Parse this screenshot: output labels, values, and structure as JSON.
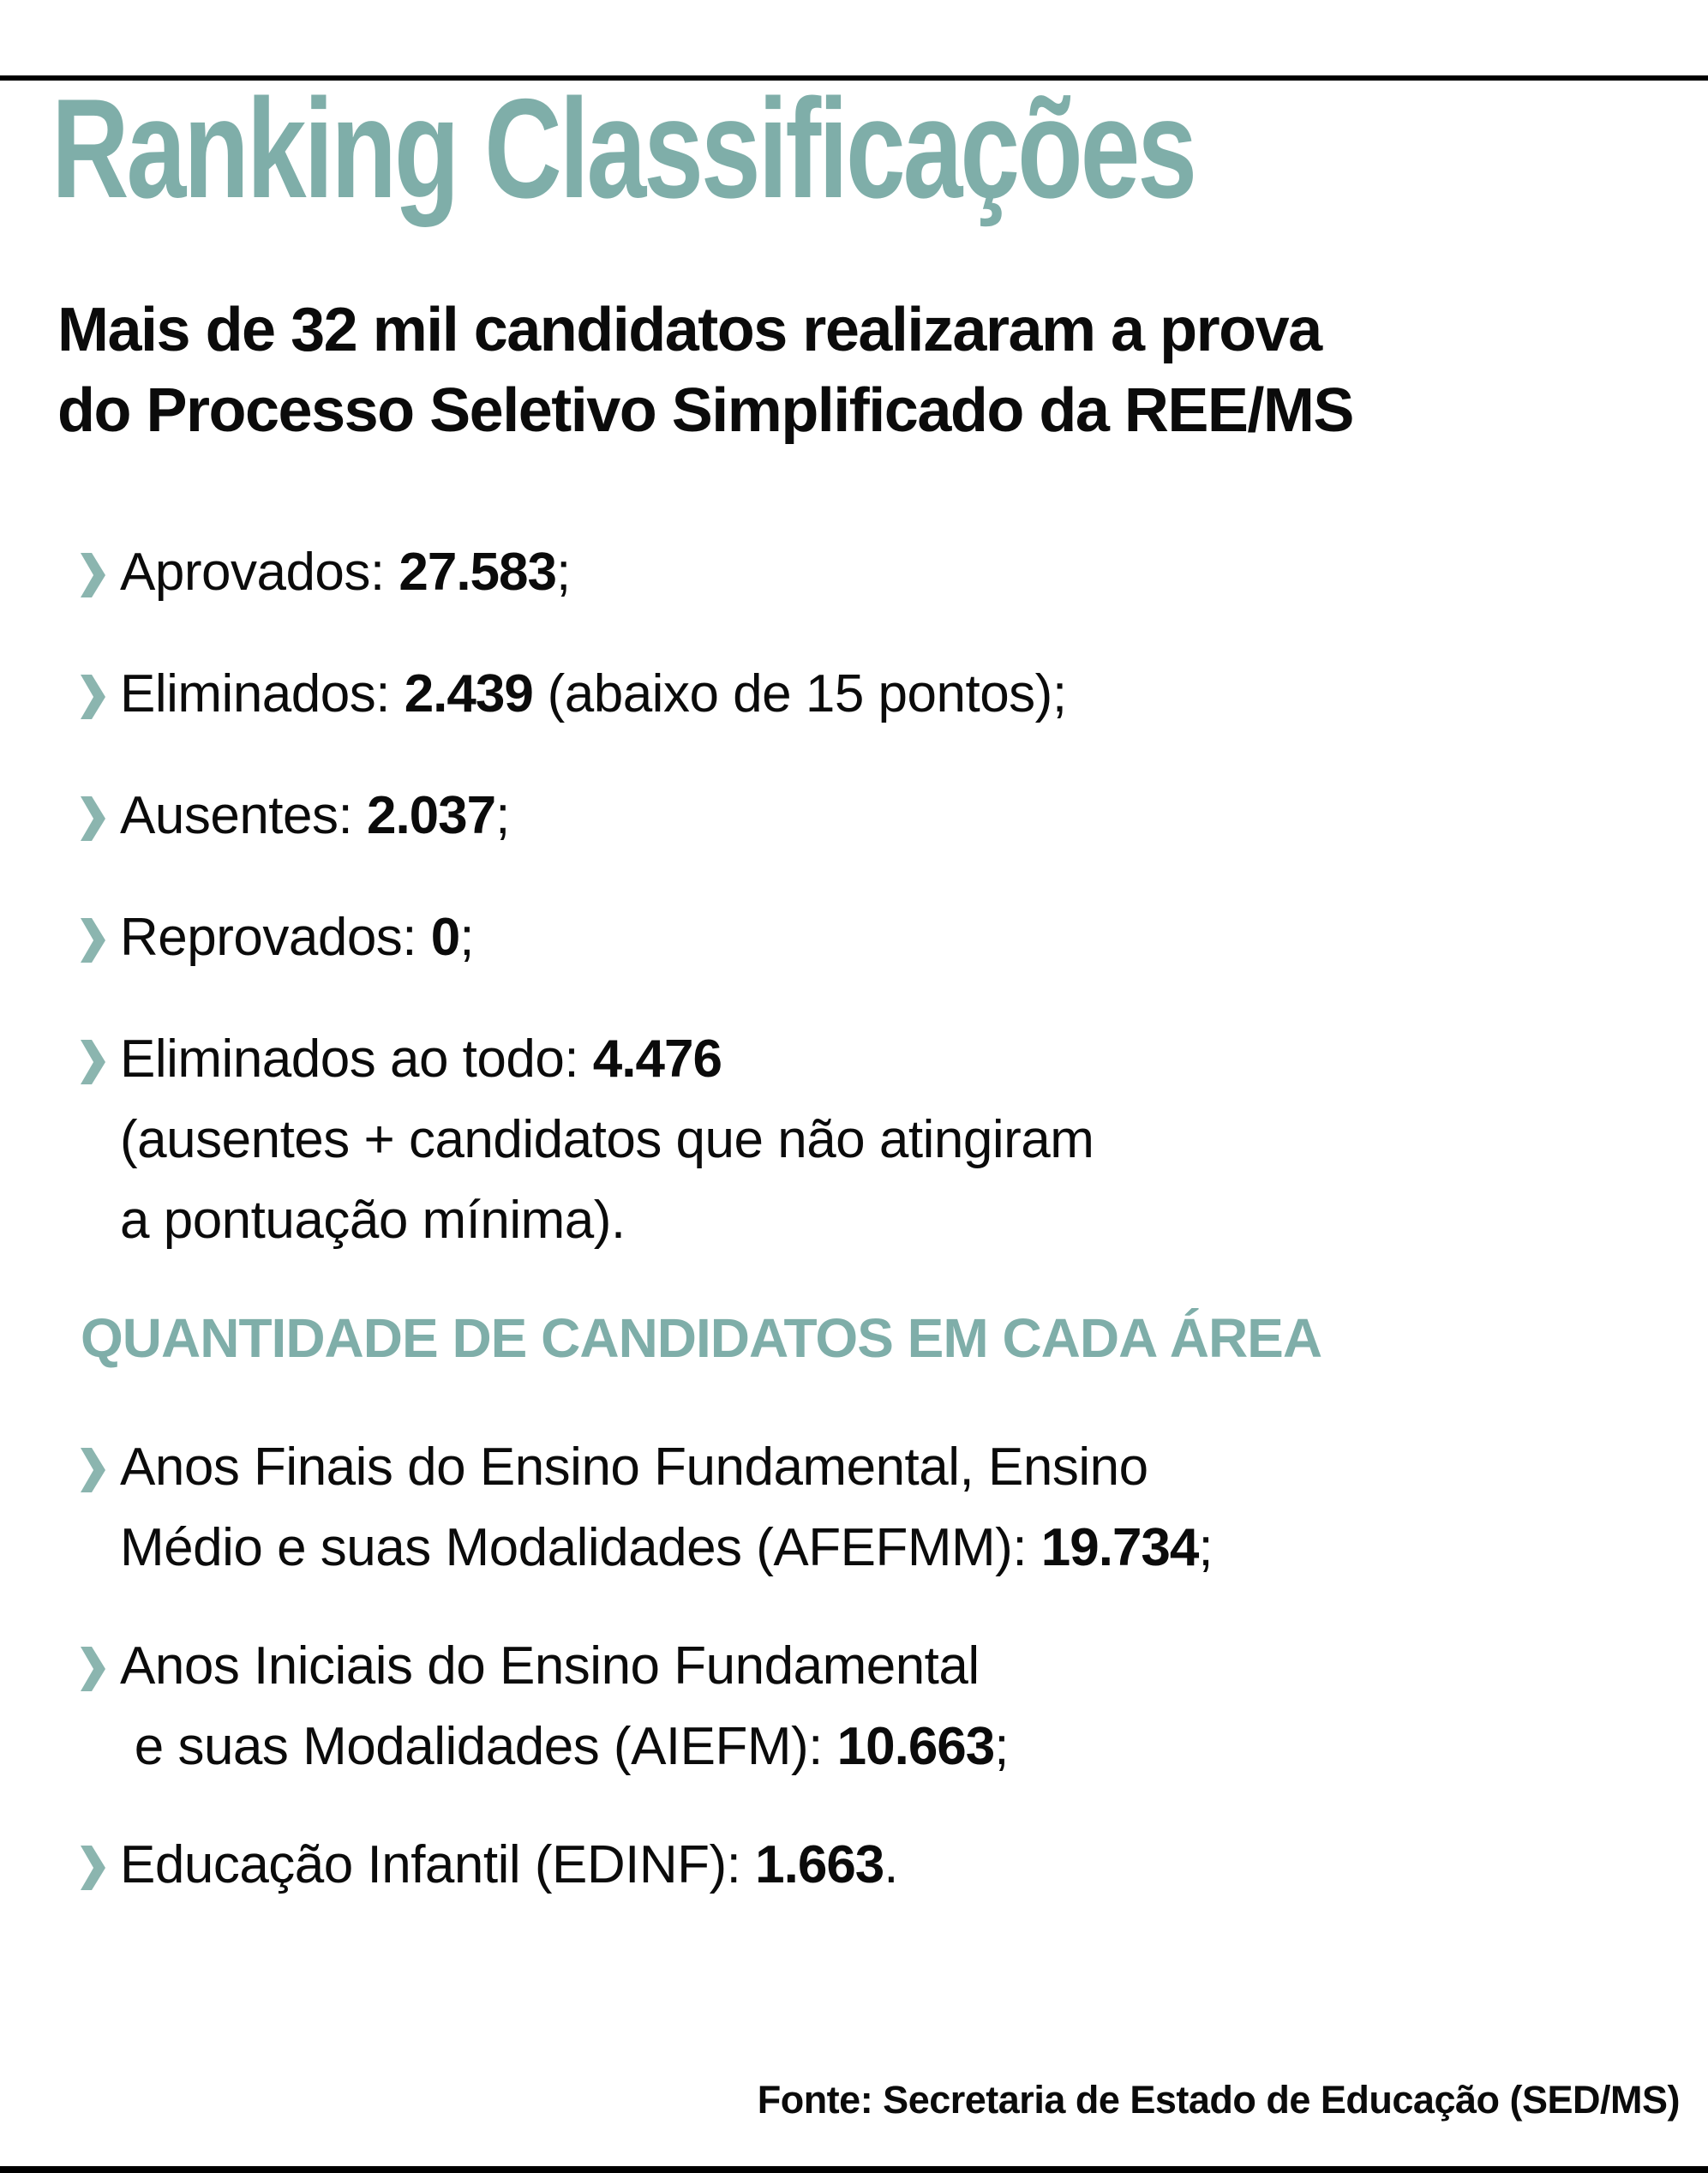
{
  "colors": {
    "accent": "#7FAEA9",
    "bullet": "#8BB5AF",
    "text": "#0B0B0B",
    "bar": "#000000",
    "background": "#FFFFFF"
  },
  "bullet_glyph": "❯",
  "header": {
    "title": "Ranking Classificações",
    "subtitle_lines": [
      "Mais de 32 mil candidatos realizaram a prova",
      "do Processo Seletivo Simplificado da REE/MS"
    ]
  },
  "summary": {
    "items": [
      {
        "lines": [
          [
            {
              "text": "Aprovados: "
            },
            {
              "text": "27.583",
              "bold": true
            },
            {
              "text": ";"
            }
          ]
        ]
      },
      {
        "lines": [
          [
            {
              "text": "Eliminados: "
            },
            {
              "text": "2.439",
              "bold": true
            },
            {
              "text": " (abaixo de 15 pontos);"
            }
          ]
        ]
      },
      {
        "lines": [
          [
            {
              "text": "Ausentes: "
            },
            {
              "text": "2.037",
              "bold": true
            },
            {
              "text": ";"
            }
          ]
        ]
      },
      {
        "lines": [
          [
            {
              "text": "Reprovados: "
            },
            {
              "text": "0",
              "bold": true
            },
            {
              "text": ";"
            }
          ]
        ]
      },
      {
        "lines": [
          [
            {
              "text": "Eliminados ao todo: "
            },
            {
              "text": "4.476",
              "bold": true
            }
          ],
          [
            {
              "text": "(ausentes + candidatos que não atingiram"
            }
          ],
          [
            {
              "text": "a pontuação mínima)."
            }
          ]
        ]
      }
    ]
  },
  "areas": {
    "heading": "QUANTIDADE DE CANDIDATOS EM CADA ÁREA",
    "items": [
      {
        "lines": [
          [
            {
              "text": "Anos Finais do Ensino Fundamental, Ensino"
            }
          ],
          [
            {
              "text": "Médio e suas Modalidades (AFEFMM): "
            },
            {
              "text": "19.734",
              "bold": true
            },
            {
              "text": ";"
            }
          ]
        ]
      },
      {
        "lines": [
          [
            {
              "text": "Anos Iniciais do Ensino Fundamental"
            }
          ],
          [
            {
              "text": " e suas Modalidades (AIEFM): "
            },
            {
              "text": "10.663",
              "bold": true
            },
            {
              "text": ";"
            }
          ]
        ]
      },
      {
        "lines": [
          [
            {
              "text": "Educação Infantil (EDINF): "
            },
            {
              "text": "1.663",
              "bold": true
            },
            {
              "text": "."
            }
          ]
        ]
      }
    ]
  },
  "footer": {
    "source": "Fonte: Secretaria de Estado de Educação (SED/MS)"
  }
}
